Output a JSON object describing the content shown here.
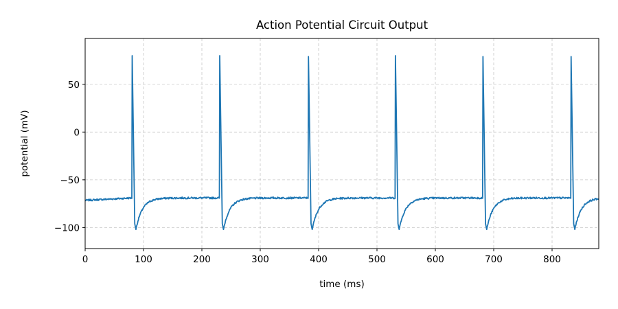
{
  "chart_data": {
    "type": "line",
    "title": "Action Potential Circuit Output",
    "xlabel": "time (ms)",
    "ylabel": "potential (mV)",
    "xlim": [
      0,
      880
    ],
    "ylim": [
      -122,
      98
    ],
    "xticks": [
      0,
      100,
      200,
      300,
      400,
      500,
      600,
      700,
      800
    ],
    "yticks": [
      50,
      0,
      -50,
      -100
    ],
    "xtick_labels": [
      "0",
      "100",
      "200",
      "300",
      "400",
      "500",
      "600",
      "700",
      "800"
    ],
    "ytick_labels": [
      "50",
      "0",
      "−50",
      "−100"
    ],
    "grid": true,
    "series": [
      {
        "color": "#1f77b4",
        "resting_potential": -69,
        "peak_potential": 80,
        "trough_potential": -102,
        "spike_times": [
          80,
          230,
          382,
          531,
          681,
          832
        ],
        "spike_peaks": [
          80,
          80,
          79,
          80,
          79,
          79
        ]
      }
    ]
  }
}
